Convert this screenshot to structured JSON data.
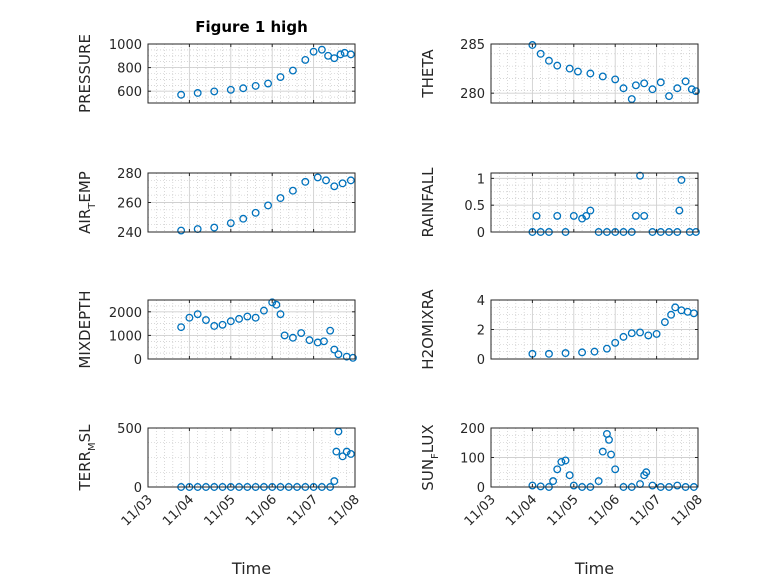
{
  "title": "Figure 1 high",
  "colors": {
    "marker": "#0072BD",
    "axes": "#262626",
    "grid": "#bfbfbf"
  },
  "x_ticks": [
    "11/03",
    "11/04",
    "11/05",
    "11/06",
    "11/07",
    "11/08"
  ],
  "xlabel": "Time",
  "chart_data": [
    {
      "type": "scatter",
      "title": "Figure 1 high",
      "ylabel": "PRESSURE",
      "ylabel_sub": "",
      "ylabel_rest": "",
      "xlim": [
        0,
        5
      ],
      "ylim": [
        500,
        1000
      ],
      "y_ticks": [
        600,
        800,
        1000
      ],
      "grid": true,
      "show_x_ticklabels": false,
      "points": [
        [
          0.8,
          570
        ],
        [
          1.2,
          585
        ],
        [
          1.6,
          598
        ],
        [
          2.0,
          612
        ],
        [
          2.3,
          625
        ],
        [
          2.6,
          645
        ],
        [
          2.9,
          665
        ],
        [
          3.2,
          720
        ],
        [
          3.5,
          775
        ],
        [
          3.8,
          865
        ],
        [
          4.0,
          935
        ],
        [
          4.2,
          952
        ],
        [
          4.35,
          900
        ],
        [
          4.5,
          880
        ],
        [
          4.65,
          912
        ],
        [
          4.75,
          925
        ],
        [
          4.9,
          912
        ]
      ]
    },
    {
      "type": "scatter",
      "title": "",
      "ylabel": "THETA",
      "ylabel_sub": "",
      "ylabel_rest": "",
      "xlim": [
        0,
        5
      ],
      "ylim": [
        279,
        285
      ],
      "y_ticks": [
        280,
        285
      ],
      "grid": true,
      "show_x_ticklabels": false,
      "points": [
        [
          1.0,
          284.9
        ],
        [
          1.2,
          284.0
        ],
        [
          1.4,
          283.3
        ],
        [
          1.6,
          282.8
        ],
        [
          1.9,
          282.5
        ],
        [
          2.1,
          282.2
        ],
        [
          2.4,
          282.0
        ],
        [
          2.7,
          281.7
        ],
        [
          3.0,
          281.4
        ],
        [
          3.2,
          280.5
        ],
        [
          3.4,
          279.4
        ],
        [
          3.5,
          280.8
        ],
        [
          3.7,
          281.0
        ],
        [
          3.9,
          280.4
        ],
        [
          4.1,
          281.1
        ],
        [
          4.3,
          279.7
        ],
        [
          4.5,
          280.5
        ],
        [
          4.7,
          281.2
        ],
        [
          4.85,
          280.4
        ],
        [
          4.95,
          280.2
        ]
      ]
    },
    {
      "type": "scatter",
      "title": "",
      "ylabel": "AIR",
      "ylabel_sub": "T",
      "ylabel_rest": "EMP",
      "xlim": [
        0,
        5
      ],
      "ylim": [
        240,
        280
      ],
      "y_ticks": [
        240,
        260,
        280
      ],
      "grid": true,
      "show_x_ticklabels": false,
      "points": [
        [
          0.8,
          241
        ],
        [
          1.2,
          242
        ],
        [
          1.6,
          243
        ],
        [
          2.0,
          246
        ],
        [
          2.3,
          249
        ],
        [
          2.6,
          253
        ],
        [
          2.9,
          258
        ],
        [
          3.2,
          263
        ],
        [
          3.5,
          268
        ],
        [
          3.8,
          274
        ],
        [
          4.1,
          277
        ],
        [
          4.3,
          275
        ],
        [
          4.5,
          271
        ],
        [
          4.7,
          273
        ],
        [
          4.9,
          275
        ]
      ]
    },
    {
      "type": "scatter",
      "title": "",
      "ylabel": "RAINFALL",
      "ylabel_sub": "",
      "ylabel_rest": "",
      "xlim": [
        0,
        5
      ],
      "ylim": [
        0,
        1.1
      ],
      "y_ticks": [
        0,
        0.5,
        1
      ],
      "grid": true,
      "show_x_ticklabels": false,
      "points": [
        [
          1.0,
          0
        ],
        [
          1.1,
          0.3
        ],
        [
          1.2,
          0
        ],
        [
          1.4,
          0
        ],
        [
          1.6,
          0.3
        ],
        [
          1.8,
          0
        ],
        [
          2.0,
          0.3
        ],
        [
          2.2,
          0.25
        ],
        [
          2.3,
          0.3
        ],
        [
          2.4,
          0.4
        ],
        [
          2.6,
          0
        ],
        [
          2.8,
          0
        ],
        [
          3.0,
          0
        ],
        [
          3.2,
          0
        ],
        [
          3.4,
          0
        ],
        [
          3.5,
          0.3
        ],
        [
          3.6,
          1.05
        ],
        [
          3.7,
          0.3
        ],
        [
          3.9,
          0
        ],
        [
          4.1,
          0
        ],
        [
          4.3,
          0
        ],
        [
          4.5,
          0
        ],
        [
          4.55,
          0.4
        ],
        [
          4.6,
          0.97
        ],
        [
          4.8,
          0
        ],
        [
          4.95,
          0
        ]
      ]
    },
    {
      "type": "scatter",
      "title": "",
      "ylabel": "MIXDEPTH",
      "ylabel_sub": "",
      "ylabel_rest": "",
      "xlim": [
        0,
        5
      ],
      "ylim": [
        0,
        2500
      ],
      "y_ticks": [
        0,
        1000,
        2000
      ],
      "grid": true,
      "show_x_ticklabels": false,
      "points": [
        [
          0.8,
          1350
        ],
        [
          1.0,
          1750
        ],
        [
          1.2,
          1900
        ],
        [
          1.4,
          1650
        ],
        [
          1.6,
          1400
        ],
        [
          1.8,
          1450
        ],
        [
          2.0,
          1600
        ],
        [
          2.2,
          1700
        ],
        [
          2.4,
          1800
        ],
        [
          2.6,
          1750
        ],
        [
          2.8,
          2050
        ],
        [
          3.0,
          2400
        ],
        [
          3.1,
          2300
        ],
        [
          3.2,
          1900
        ],
        [
          3.3,
          1000
        ],
        [
          3.5,
          900
        ],
        [
          3.7,
          1100
        ],
        [
          3.9,
          800
        ],
        [
          4.1,
          700
        ],
        [
          4.25,
          750
        ],
        [
          4.4,
          1200
        ],
        [
          4.5,
          400
        ],
        [
          4.6,
          200
        ],
        [
          4.8,
          100
        ],
        [
          4.95,
          50
        ]
      ]
    },
    {
      "type": "scatter",
      "title": "",
      "ylabel": "H2OMIXRA",
      "ylabel_sub": "",
      "ylabel_rest": "",
      "xlim": [
        0,
        5
      ],
      "ylim": [
        0,
        4
      ],
      "y_ticks": [
        0,
        2,
        4
      ],
      "grid": true,
      "show_x_ticklabels": false,
      "points": [
        [
          1.0,
          0.35
        ],
        [
          1.4,
          0.35
        ],
        [
          1.8,
          0.4
        ],
        [
          2.2,
          0.45
        ],
        [
          2.5,
          0.5
        ],
        [
          2.8,
          0.7
        ],
        [
          3.0,
          1.1
        ],
        [
          3.2,
          1.5
        ],
        [
          3.4,
          1.75
        ],
        [
          3.6,
          1.8
        ],
        [
          3.8,
          1.6
        ],
        [
          4.0,
          1.7
        ],
        [
          4.2,
          2.5
        ],
        [
          4.35,
          3.0
        ],
        [
          4.45,
          3.5
        ],
        [
          4.6,
          3.3
        ],
        [
          4.75,
          3.2
        ],
        [
          4.9,
          3.1
        ]
      ]
    },
    {
      "type": "scatter",
      "title": "",
      "ylabel": "TERR",
      "ylabel_sub": "M",
      "ylabel_rest": "SL",
      "xlim": [
        0,
        5
      ],
      "ylim": [
        0,
        500
      ],
      "y_ticks": [
        0,
        500
      ],
      "grid": true,
      "show_x_ticklabels": true,
      "points": [
        [
          0.8,
          0
        ],
        [
          1.0,
          0
        ],
        [
          1.2,
          0
        ],
        [
          1.4,
          0
        ],
        [
          1.6,
          0
        ],
        [
          1.8,
          0
        ],
        [
          2.0,
          0
        ],
        [
          2.2,
          0
        ],
        [
          2.4,
          0
        ],
        [
          2.6,
          0
        ],
        [
          2.8,
          0
        ],
        [
          3.0,
          0
        ],
        [
          3.2,
          0
        ],
        [
          3.4,
          0
        ],
        [
          3.6,
          0
        ],
        [
          3.8,
          0
        ],
        [
          4.0,
          0
        ],
        [
          4.2,
          0
        ],
        [
          4.4,
          0
        ],
        [
          4.5,
          50
        ],
        [
          4.55,
          300
        ],
        [
          4.6,
          470
        ],
        [
          4.7,
          260
        ],
        [
          4.8,
          300
        ],
        [
          4.9,
          280
        ]
      ]
    },
    {
      "type": "scatter",
      "title": "",
      "ylabel": "SUN",
      "ylabel_sub": "F",
      "ylabel_rest": "LUX",
      "xlim": [
        0,
        5
      ],
      "ylim": [
        0,
        200
      ],
      "y_ticks": [
        0,
        100,
        200
      ],
      "grid": true,
      "show_x_ticklabels": true,
      "points": [
        [
          1.0,
          5
        ],
        [
          1.2,
          2
        ],
        [
          1.4,
          0
        ],
        [
          1.5,
          20
        ],
        [
          1.6,
          60
        ],
        [
          1.7,
          85
        ],
        [
          1.8,
          90
        ],
        [
          1.9,
          40
        ],
        [
          2.0,
          5
        ],
        [
          2.2,
          0
        ],
        [
          2.4,
          0
        ],
        [
          2.6,
          20
        ],
        [
          2.7,
          120
        ],
        [
          2.8,
          180
        ],
        [
          2.85,
          160
        ],
        [
          2.9,
          110
        ],
        [
          3.0,
          60
        ],
        [
          3.2,
          0
        ],
        [
          3.4,
          0
        ],
        [
          3.6,
          10
        ],
        [
          3.7,
          40
        ],
        [
          3.75,
          50
        ],
        [
          3.9,
          5
        ],
        [
          4.1,
          0
        ],
        [
          4.3,
          0
        ],
        [
          4.5,
          5
        ],
        [
          4.7,
          0
        ],
        [
          4.9,
          0
        ]
      ]
    }
  ]
}
